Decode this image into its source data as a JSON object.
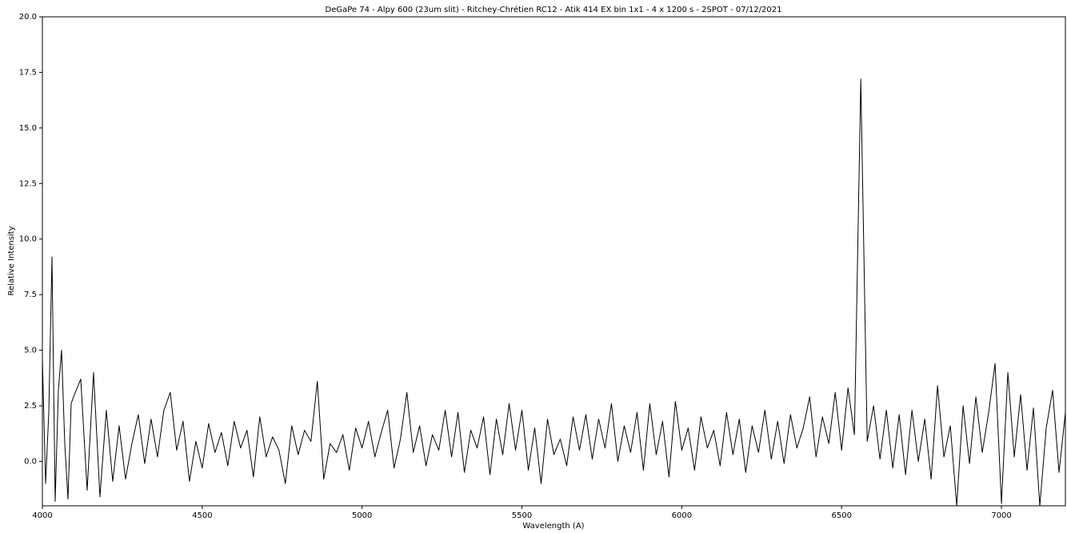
{
  "chart_data": {
    "type": "line",
    "title": "DeGaPe 74 - Alpy 600 (23um slit) - Ritchey-Chrétien RC12 - Atik 414 EX bin 1x1 - 4 x 1200 s - 2SPOT - 07/12/2021",
    "xlabel": "Wavelength (A)",
    "ylabel": "Relative Intensity",
    "color": "#000000",
    "xlim": [
      4000,
      7200
    ],
    "ylim": [
      -2,
      20
    ],
    "xticks": [
      4000,
      4500,
      5000,
      5500,
      6000,
      6500,
      7000
    ],
    "yticks": [
      {
        "value": 0,
        "label": "0.0"
      },
      {
        "value": 2.5,
        "label": "2.5"
      },
      {
        "value": 5,
        "label": "5.0"
      },
      {
        "value": 7.5,
        "label": "7.5"
      },
      {
        "value": 10,
        "label": "10.0"
      },
      {
        "value": 12.5,
        "label": "12.5"
      },
      {
        "value": 15,
        "label": "15.0"
      },
      {
        "value": 17.5,
        "label": "17.5"
      },
      {
        "value": 20,
        "label": "20.0"
      }
    ],
    "x": [
      4000,
      4010,
      4020,
      4030,
      4040,
      4050,
      4060,
      4070,
      4080,
      4090,
      4100,
      4120,
      4140,
      4160,
      4180,
      4200,
      4220,
      4240,
      4260,
      4280,
      4300,
      4320,
      4340,
      4360,
      4380,
      4400,
      4420,
      4440,
      4460,
      4480,
      4500,
      4520,
      4540,
      4560,
      4580,
      4600,
      4620,
      4640,
      4660,
      4680,
      4700,
      4720,
      4740,
      4760,
      4780,
      4800,
      4820,
      4840,
      4860,
      4880,
      4900,
      4920,
      4940,
      4960,
      4980,
      5000,
      5020,
      5040,
      5060,
      5080,
      5100,
      5120,
      5140,
      5160,
      5180,
      5200,
      5220,
      5240,
      5260,
      5280,
      5300,
      5320,
      5340,
      5360,
      5380,
      5400,
      5420,
      5440,
      5460,
      5480,
      5500,
      5520,
      5540,
      5560,
      5580,
      5600,
      5620,
      5640,
      5660,
      5680,
      5700,
      5720,
      5740,
      5760,
      5780,
      5800,
      5820,
      5840,
      5860,
      5880,
      5900,
      5920,
      5940,
      5960,
      5980,
      6000,
      6020,
      6040,
      6060,
      6080,
      6100,
      6120,
      6140,
      6160,
      6180,
      6200,
      6220,
      6240,
      6260,
      6280,
      6300,
      6320,
      6340,
      6360,
      6380,
      6400,
      6420,
      6440,
      6460,
      6480,
      6500,
      6520,
      6540,
      6560,
      6580,
      6600,
      6620,
      6640,
      6660,
      6680,
      6700,
      6720,
      6740,
      6760,
      6780,
      6800,
      6820,
      6840,
      6860,
      6880,
      6900,
      6920,
      6940,
      6960,
      6980,
      7000,
      7020,
      7040,
      7060,
      7080,
      7100,
      7120,
      7140,
      7160,
      7180,
      7200
    ],
    "values": [
      4.6,
      -1.0,
      2.2,
      9.2,
      -1.8,
      3.2,
      5.0,
      0.8,
      -1.7,
      2.6,
      3.0,
      3.7,
      -1.3,
      4.0,
      -1.6,
      2.3,
      -0.9,
      1.6,
      -0.8,
      0.8,
      2.1,
      -0.1,
      1.9,
      0.2,
      2.3,
      3.1,
      0.5,
      1.8,
      -0.9,
      0.9,
      -0.3,
      1.7,
      0.4,
      1.3,
      -0.2,
      1.8,
      0.6,
      1.4,
      -0.7,
      2.0,
      0.2,
      1.1,
      0.5,
      -1.0,
      1.6,
      0.3,
      1.4,
      0.9,
      3.6,
      -0.8,
      0.8,
      0.4,
      1.2,
      -0.4,
      1.5,
      0.6,
      1.8,
      0.2,
      1.3,
      2.3,
      -0.3,
      1.0,
      3.1,
      0.4,
      1.6,
      -0.2,
      1.2,
      0.5,
      2.3,
      0.2,
      2.2,
      -0.5,
      1.4,
      0.6,
      2.0,
      -0.6,
      1.9,
      0.3,
      2.6,
      0.5,
      2.3,
      -0.4,
      1.5,
      -1.0,
      1.9,
      0.3,
      1.0,
      -0.2,
      2.0,
      0.5,
      2.1,
      0.1,
      1.9,
      0.6,
      2.6,
      0.0,
      1.6,
      0.4,
      2.2,
      -0.4,
      2.6,
      0.3,
      1.8,
      -0.7,
      2.7,
      0.5,
      1.5,
      -0.4,
      2.0,
      0.6,
      1.4,
      -0.2,
      2.2,
      0.3,
      1.9,
      -0.5,
      1.6,
      0.4,
      2.3,
      0.1,
      1.8,
      -0.1,
      2.1,
      0.6,
      1.5,
      2.9,
      0.2,
      2.0,
      0.8,
      3.1,
      0.5,
      3.3,
      1.2,
      17.2,
      0.9,
      2.5,
      0.1,
      2.3,
      -0.3,
      2.1,
      -0.6,
      2.3,
      0.0,
      1.9,
      -0.8,
      3.4,
      0.2,
      1.6,
      -2.0,
      2.5,
      -0.1,
      2.9,
      0.4,
      2.2,
      4.4,
      -1.9,
      4.0,
      0.2,
      3.0,
      -0.4,
      2.4,
      -2.0,
      1.5,
      3.2,
      -0.5,
      2.2
    ]
  }
}
